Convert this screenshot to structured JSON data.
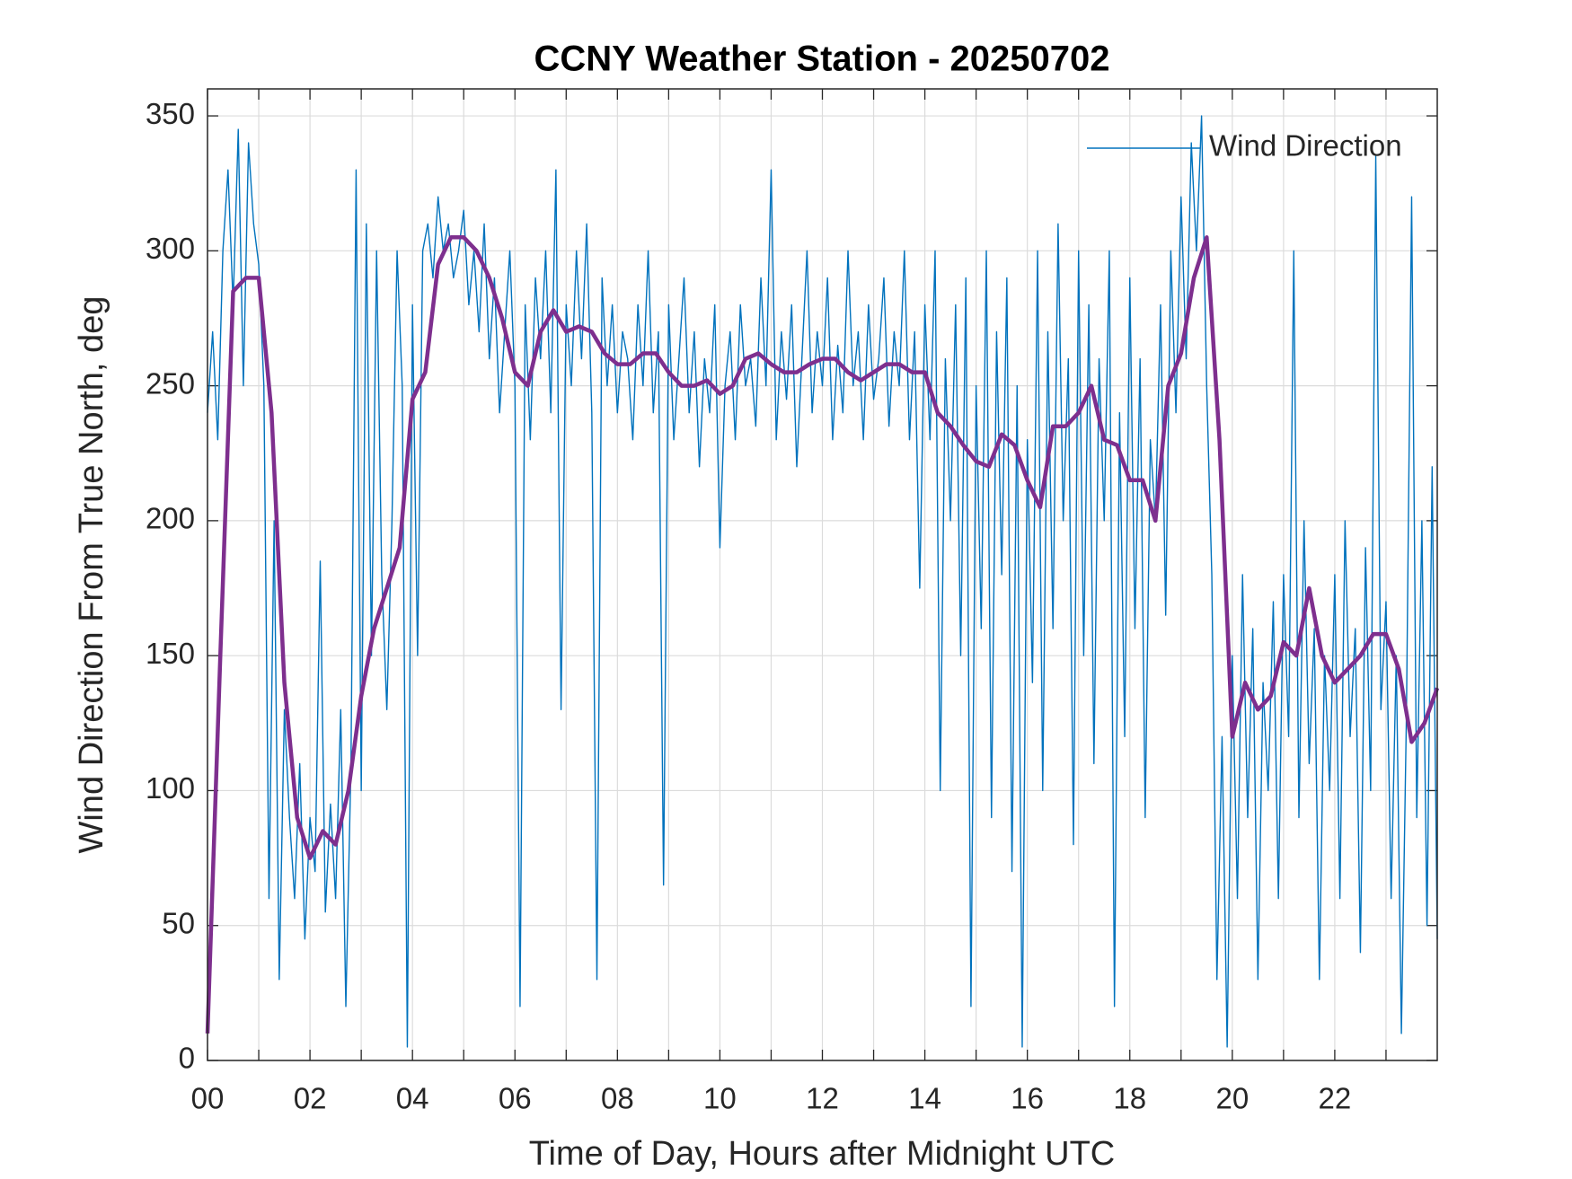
{
  "chart_data": {
    "type": "line",
    "title": "CCNY Weather Station - 20250702",
    "xlabel": "Time of Day, Hours after Midnight UTC",
    "ylabel": "Wind Direction From True North, deg",
    "xlim": [
      0,
      24
    ],
    "ylim": [
      0,
      360
    ],
    "xticks": [
      {
        "value": 0,
        "label": "00"
      },
      {
        "value": 2,
        "label": "02"
      },
      {
        "value": 4,
        "label": "04"
      },
      {
        "value": 6,
        "label": "06"
      },
      {
        "value": 8,
        "label": "08"
      },
      10,
      12,
      14,
      16,
      18,
      20,
      22
    ],
    "xminorticks": [
      1,
      3,
      5,
      7,
      9,
      11,
      13,
      15,
      17,
      19,
      21,
      23
    ],
    "yticks": [
      0,
      50,
      100,
      150,
      200,
      250,
      300,
      350
    ],
    "grid": true,
    "legend": "northeast",
    "series": [
      {
        "name": "Wind Direction",
        "color": "#0072BD",
        "x": [
          0,
          0.1,
          0.2,
          0.3,
          0.4,
          0.5,
          0.6,
          0.7,
          0.8,
          0.9,
          1,
          1.1,
          1.2,
          1.3,
          1.4,
          1.5,
          1.6,
          1.7,
          1.8,
          1.9,
          2,
          2.1,
          2.2,
          2.3,
          2.4,
          2.5,
          2.6,
          2.7,
          2.8,
          2.9,
          3,
          3.1,
          3.2,
          3.3,
          3.4,
          3.5,
          3.6,
          3.7,
          3.8,
          3.9,
          4,
          4.1,
          4.2,
          4.3,
          4.4,
          4.5,
          4.6,
          4.7,
          4.8,
          4.9,
          5,
          5.1,
          5.2,
          5.3,
          5.4,
          5.5,
          5.6,
          5.7,
          5.8,
          5.9,
          6,
          6.1,
          6.2,
          6.3,
          6.4,
          6.5,
          6.6,
          6.7,
          6.8,
          6.9,
          7,
          7.1,
          7.2,
          7.3,
          7.4,
          7.5,
          7.6,
          7.7,
          7.8,
          7.9,
          8,
          8.1,
          8.2,
          8.3,
          8.4,
          8.5,
          8.6,
          8.7,
          8.8,
          8.9,
          9,
          9.1,
          9.2,
          9.3,
          9.4,
          9.5,
          9.6,
          9.7,
          9.8,
          9.9,
          10,
          10.1,
          10.2,
          10.3,
          10.4,
          10.5,
          10.6,
          10.7,
          10.8,
          10.9,
          11,
          11.1,
          11.2,
          11.3,
          11.4,
          11.5,
          11.6,
          11.7,
          11.8,
          11.9,
          12,
          12.1,
          12.2,
          12.3,
          12.4,
          12.5,
          12.6,
          12.7,
          12.8,
          12.9,
          13,
          13.1,
          13.2,
          13.3,
          13.4,
          13.5,
          13.6,
          13.7,
          13.8,
          13.9,
          14,
          14.1,
          14.2,
          14.3,
          14.4,
          14.5,
          14.6,
          14.7,
          14.8,
          14.9,
          15,
          15.1,
          15.2,
          15.3,
          15.4,
          15.5,
          15.6,
          15.7,
          15.8,
          15.9,
          16,
          16.1,
          16.2,
          16.3,
          16.4,
          16.5,
          16.6,
          16.7,
          16.8,
          16.9,
          17,
          17.1,
          17.2,
          17.3,
          17.4,
          17.5,
          17.6,
          17.7,
          17.8,
          17.9,
          18,
          18.1,
          18.2,
          18.3,
          18.4,
          18.5,
          18.6,
          18.7,
          18.8,
          18.9,
          19,
          19.1,
          19.2,
          19.3,
          19.4,
          19.5,
          19.6,
          19.7,
          19.8,
          19.9,
          20,
          20.1,
          20.2,
          20.3,
          20.4,
          20.5,
          20.6,
          20.7,
          20.8,
          20.9,
          21,
          21.1,
          21.2,
          21.3,
          21.4,
          21.5,
          21.6,
          21.7,
          21.8,
          21.9,
          22,
          22.1,
          22.2,
          22.3,
          22.4,
          22.5,
          22.6,
          22.7,
          22.8,
          22.9,
          23,
          23.1,
          23.2,
          23.3,
          23.4,
          23.5,
          23.6,
          23.7,
          23.8,
          23.9,
          24
        ],
        "values": [
          240,
          270,
          230,
          300,
          330,
          280,
          345,
          250,
          340,
          310,
          295,
          250,
          60,
          200,
          30,
          130,
          90,
          60,
          110,
          45,
          90,
          70,
          185,
          55,
          95,
          60,
          130,
          20,
          110,
          330,
          100,
          310,
          150,
          300,
          180,
          130,
          200,
          300,
          250,
          5,
          280,
          150,
          300,
          310,
          290,
          320,
          300,
          310,
          290,
          300,
          315,
          280,
          300,
          270,
          310,
          260,
          290,
          240,
          270,
          300,
          250,
          20,
          280,
          230,
          290,
          260,
          300,
          240,
          330,
          130,
          280,
          250,
          300,
          260,
          310,
          240,
          30,
          290,
          250,
          280,
          240,
          270,
          260,
          230,
          280,
          250,
          300,
          240,
          270,
          65,
          280,
          230,
          260,
          290,
          240,
          270,
          220,
          260,
          240,
          280,
          190,
          250,
          270,
          230,
          280,
          250,
          260,
          235,
          290,
          250,
          330,
          230,
          270,
          245,
          280,
          220,
          260,
          300,
          240,
          270,
          250,
          290,
          230,
          265,
          240,
          300,
          250,
          270,
          230,
          280,
          245,
          260,
          290,
          235,
          270,
          250,
          300,
          230,
          270,
          175,
          280,
          230,
          300,
          100,
          260,
          200,
          280,
          150,
          290,
          20,
          250,
          160,
          300,
          90,
          270,
          180,
          290,
          70,
          250,
          5,
          230,
          140,
          300,
          100,
          270,
          160,
          310,
          200,
          260,
          80,
          300,
          150,
          280,
          110,
          260,
          200,
          300,
          20,
          240,
          120,
          290,
          160,
          260,
          90,
          230,
          200,
          280,
          165,
          300,
          240,
          320,
          260,
          340,
          300,
          350,
          250,
          180,
          30,
          120,
          5,
          150,
          60,
          180,
          90,
          160,
          30,
          140,
          100,
          170,
          60,
          180,
          120,
          300,
          90,
          200,
          110,
          160,
          30,
          150,
          100,
          180,
          60,
          200,
          120,
          160,
          40,
          190,
          100,
          335,
          130,
          170,
          60,
          150,
          10,
          130,
          320,
          90,
          200,
          50,
          220,
          45
        ]
      },
      {
        "color": "#7E2F8E",
        "x": [
          0,
          0.25,
          0.5,
          0.75,
          1,
          1.25,
          1.5,
          1.75,
          2,
          2.25,
          2.5,
          2.75,
          3,
          3.25,
          3.5,
          3.75,
          4,
          4.25,
          4.5,
          4.75,
          5,
          5.25,
          5.5,
          5.75,
          6,
          6.25,
          6.5,
          6.75,
          7,
          7.25,
          7.5,
          7.75,
          8,
          8.25,
          8.5,
          8.75,
          9,
          9.25,
          9.5,
          9.75,
          10,
          10.25,
          10.5,
          10.75,
          11,
          11.25,
          11.5,
          11.75,
          12,
          12.25,
          12.5,
          12.75,
          13,
          13.25,
          13.5,
          13.75,
          14,
          14.25,
          14.5,
          14.75,
          15,
          15.25,
          15.5,
          15.75,
          16,
          16.25,
          16.5,
          16.75,
          17,
          17.25,
          17.5,
          17.75,
          18,
          18.25,
          18.5,
          18.75,
          19,
          19.25,
          19.5,
          19.75,
          20,
          20.25,
          20.5,
          20.75,
          21,
          21.25,
          21.5,
          21.75,
          22,
          22.25,
          22.5,
          22.75,
          23,
          23.25,
          23.5,
          23.75,
          24
        ],
        "values": [
          10,
          150,
          285,
          290,
          290,
          240,
          140,
          90,
          75,
          85,
          80,
          100,
          135,
          160,
          175,
          190,
          245,
          255,
          295,
          305,
          305,
          300,
          290,
          275,
          255,
          250,
          270,
          278,
          270,
          272,
          270,
          262,
          258,
          258,
          262,
          262,
          255,
          250,
          250,
          252,
          247,
          250,
          260,
          262,
          258,
          255,
          255,
          258,
          260,
          260,
          255,
          252,
          255,
          258,
          258,
          255,
          255,
          240,
          235,
          228,
          222,
          220,
          232,
          228,
          215,
          205,
          235,
          235,
          240,
          250,
          230,
          228,
          215,
          215,
          200,
          250,
          262,
          290,
          305,
          230,
          120,
          140,
          130,
          135,
          155,
          150,
          175,
          150,
          140,
          145,
          150,
          158,
          158,
          145,
          118,
          125,
          138
        ]
      }
    ]
  }
}
